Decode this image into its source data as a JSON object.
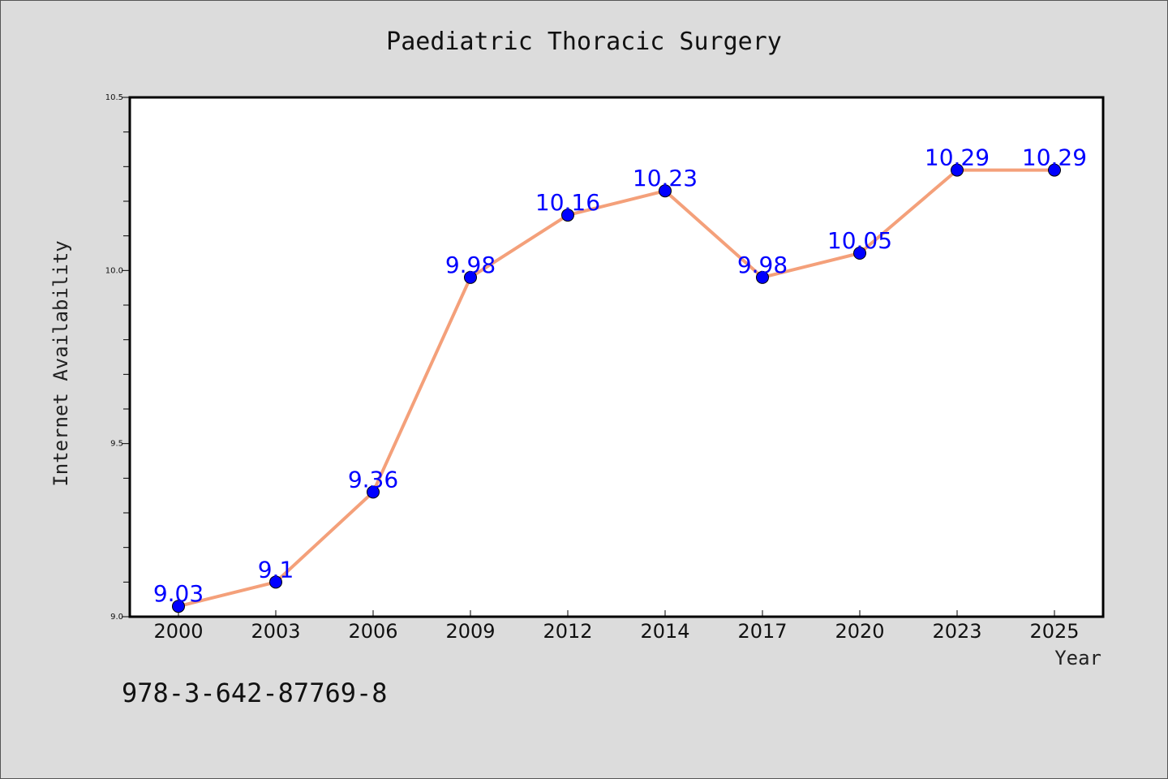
{
  "page": {
    "title": "Paediatric Thoracic Surgery",
    "footer_code": "978-3-642-87769-8"
  },
  "chart_data": {
    "type": "line",
    "title": "Paediatric Thoracic Surgery",
    "xlabel": "Year",
    "ylabel": "Internet Availability",
    "categories": [
      "2000",
      "2003",
      "2006",
      "2009",
      "2012",
      "2014",
      "2017",
      "2020",
      "2023",
      "2025"
    ],
    "series": [
      {
        "values": [
          9.03,
          9.1,
          9.36,
          9.98,
          10.16,
          10.23,
          9.98,
          10.05,
          10.29,
          10.29
        ],
        "data_labels": [
          "9.03",
          "9.1",
          "9.36",
          "9.98",
          "10.16",
          "10.23",
          "9.98",
          "10.05",
          "10.29",
          "10.29"
        ],
        "line_color": "#f4a07a",
        "marker_color": "#0000ff",
        "label_color": "#0000ff"
      }
    ],
    "ylim": [
      9.0,
      10.5
    ],
    "y_ticks": [
      "9.0",
      "9.5",
      "10.0",
      "10.5"
    ],
    "grid": false,
    "background": "#dcdcdc",
    "plot_background": "#ffffff"
  }
}
